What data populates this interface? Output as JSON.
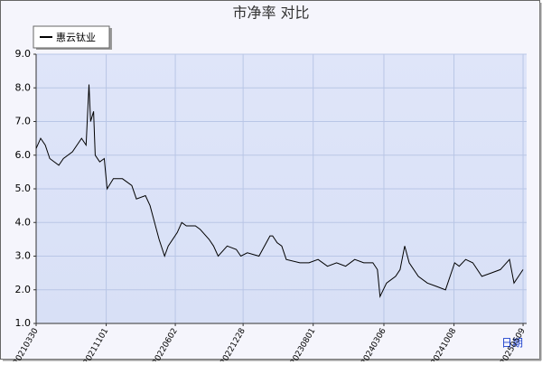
{
  "chart_data": {
    "type": "line",
    "title": "市净率 对比",
    "xlabel": "日期",
    "series": [
      {
        "name": "惠云钛业",
        "color": "#000000",
        "x": [
          "20210330",
          "20210413",
          "20210427",
          "20210511",
          "20210608",
          "20210622",
          "20210720",
          "20210817",
          "20210831",
          "20210909",
          "20210914",
          "20210923",
          "20210928",
          "20211012",
          "20211026",
          "20211104",
          "20211123",
          "20211221",
          "20220119",
          "20220202",
          "20220302",
          "20220316",
          "20220330",
          "20220413",
          "20220430",
          "20220511",
          "20220608",
          "20220622",
          "20220706",
          "20220803",
          "20220817",
          "20220914",
          "20220928",
          "20221012",
          "20221109",
          "20221207",
          "20221221",
          "20230110",
          "20230215",
          "20230321",
          "20230329",
          "20230412",
          "20230426",
          "20230510",
          "20230621",
          "20230719",
          "20230816",
          "20230914",
          "20231012",
          "20231109",
          "20231207",
          "20240104",
          "20240201",
          "20240215",
          "20240223",
          "20240314",
          "20240411",
          "20240425",
          "20240509",
          "20240523",
          "20240620",
          "20240718",
          "20240815",
          "20240912",
          "20241010",
          "20241024",
          "20241113",
          "20241205",
          "20250102",
          "20250131",
          "20250228",
          "20250328",
          "20250411",
          "20250425",
          "20250509"
        ],
        "values": [
          6.2,
          6.5,
          6.3,
          5.9,
          5.7,
          5.9,
          6.1,
          6.5,
          6.3,
          8.1,
          7.0,
          7.3,
          6.0,
          5.8,
          5.9,
          5.0,
          5.3,
          5.3,
          5.1,
          4.7,
          4.8,
          4.5,
          4.0,
          3.5,
          3.0,
          3.3,
          3.7,
          4.0,
          3.9,
          3.9,
          3.8,
          3.5,
          3.3,
          3.0,
          3.3,
          3.2,
          3.0,
          3.1,
          3.0,
          3.6,
          3.6,
          3.4,
          3.3,
          2.9,
          2.8,
          2.8,
          2.9,
          2.7,
          2.8,
          2.7,
          2.9,
          2.8,
          2.8,
          2.6,
          1.8,
          2.2,
          2.4,
          2.6,
          3.3,
          2.8,
          2.4,
          2.2,
          2.1,
          2.0,
          2.8,
          2.7,
          2.9,
          2.8,
          2.4,
          2.5,
          2.6,
          2.9,
          2.2,
          2.4,
          2.6
        ]
      }
    ],
    "xlim": [
      "20210330",
      "20250520"
    ],
    "xticks": [
      "20210330",
      "20211101",
      "20220602",
      "20221228",
      "20230801",
      "20240306",
      "20241008",
      "20250509"
    ],
    "ylim": [
      1,
      9
    ],
    "yticks": [
      {
        "value": 1,
        "label": "1.0"
      },
      {
        "value": 2,
        "label": "2.0"
      },
      {
        "value": 3,
        "label": "3.0"
      },
      {
        "value": 4,
        "label": "4.0"
      },
      {
        "value": 5,
        "label": "5.0"
      },
      {
        "value": 6,
        "label": "6.0"
      },
      {
        "value": 7,
        "label": "7.0"
      },
      {
        "value": 8,
        "label": "8.0"
      },
      {
        "value": 9,
        "label": "9.0"
      }
    ],
    "grid": true
  }
}
